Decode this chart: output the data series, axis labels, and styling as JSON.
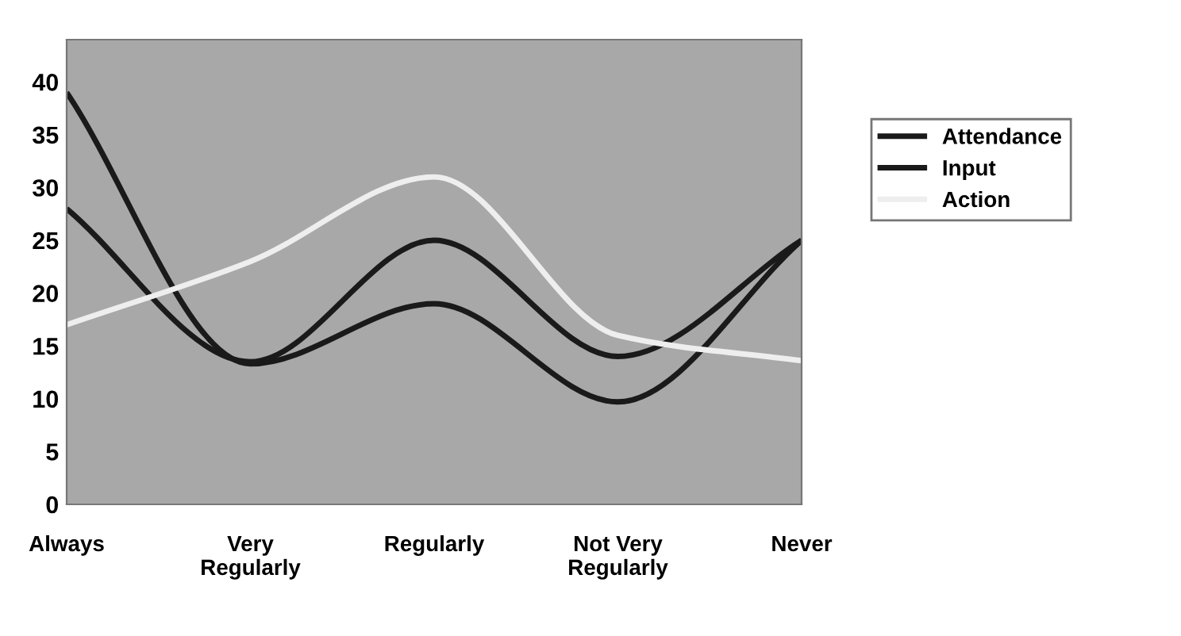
{
  "chart_data": {
    "type": "line",
    "categories": [
      "Always",
      "Very\nRegularly",
      "Regularly",
      "Not Very\nRegularly",
      "Never"
    ],
    "series": [
      {
        "name": "Attendance",
        "color": "#1a1a1a",
        "values": [
          39,
          13.3,
          19,
          9.7,
          25
        ]
      },
      {
        "name": "Input",
        "color": "#1a1a1a",
        "values": [
          28,
          13.5,
          25,
          14,
          25
        ]
      },
      {
        "name": "Action",
        "color": "#eeeeee",
        "values": [
          17,
          23,
          31,
          16,
          13.6
        ]
      }
    ],
    "ylim": [
      0,
      44
    ],
    "yticks": [
      0,
      5,
      10,
      15,
      20,
      25,
      30,
      35,
      40
    ],
    "grid": false,
    "legend": "right",
    "marker": "none",
    "line_style": "solid"
  }
}
